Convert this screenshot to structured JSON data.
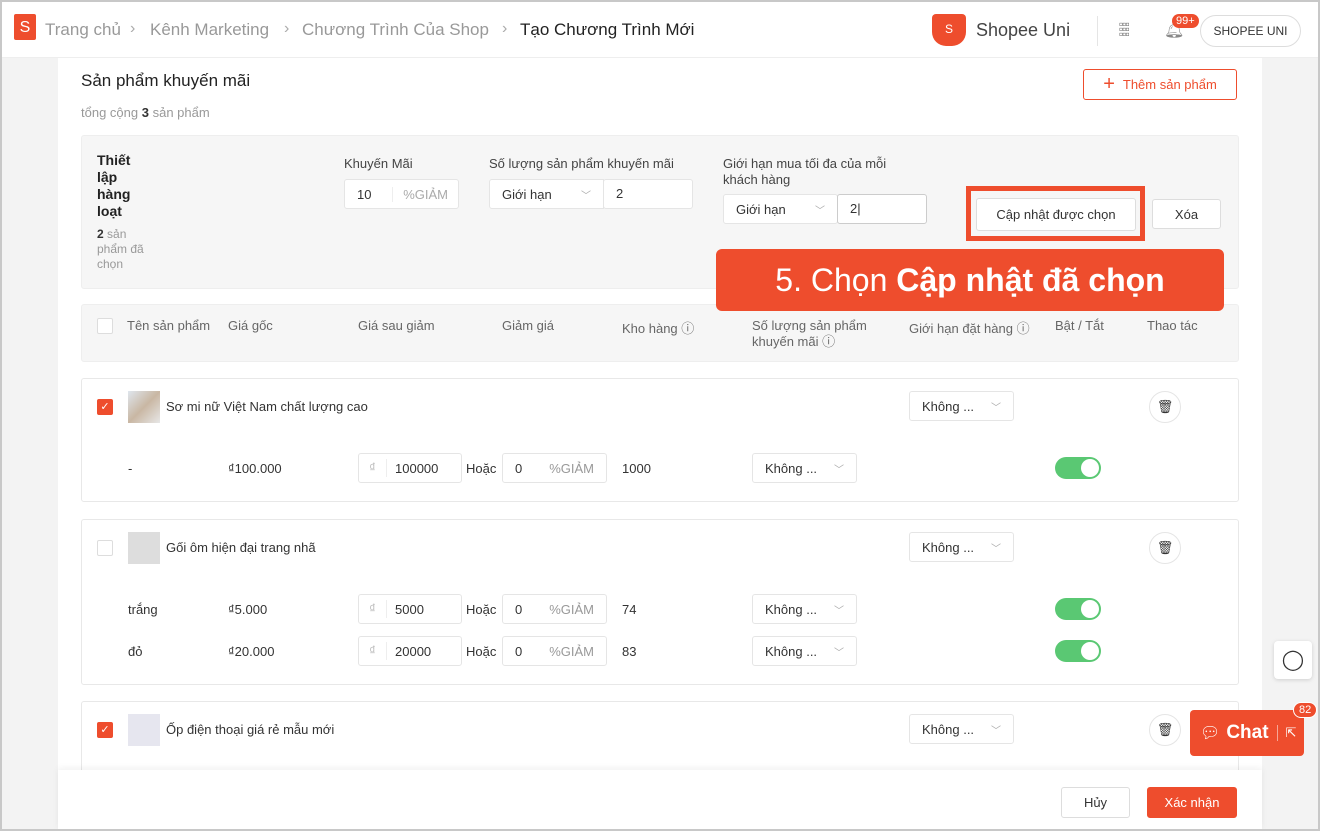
{
  "breadcrumb": [
    "Trang chủ",
    "Kênh Marketing",
    "Chương Trình Của Shop",
    "Tạo Chương Trình Mới"
  ],
  "header": {
    "brand": "Shopee Uni",
    "notif_badge": "99+",
    "account": "SHOPEE UNI"
  },
  "section": {
    "title": "Sản phẩm khuyến mãi",
    "total_prefix": "tổng cộng",
    "total_count": "3",
    "total_suffix": "sản phẩm",
    "add_button": "Thêm sản phẩm"
  },
  "bulk": {
    "title": "Thiết lập hàng loạt",
    "selected_count": "2",
    "selected_suffix": "sản phẩm đã chọn",
    "promo_label": "Khuyến Mãi",
    "promo_value": "10",
    "promo_unit": "%GIẢM",
    "qty_label": "Số lượng sản phẩm khuyến mãi",
    "qty_select": "Giới hạn",
    "qty_value": "2",
    "limit_label": "Giới hạn mua tối đa của mỗi khách hàng",
    "limit_select": "Giới hạn",
    "limit_value": "2",
    "update_button": "Cập nhật được chọn",
    "delete_button": "Xóa"
  },
  "callout": {
    "prefix": "5. Chọn",
    "bold": "Cập nhật đã chọn"
  },
  "columns": [
    "Tên sản phẩm",
    "Giá gốc",
    "Giá sau giảm",
    "Giảm giá",
    "Kho hàng",
    "Số lượng sản phẩm khuyến mãi",
    "Giới hạn đặt hàng",
    "Bật / Tắt",
    "Thao tác"
  ],
  "products": [
    {
      "name": "Sơ mi nữ Việt Nam chất lượng cao",
      "checked": true,
      "limit": "Không ...",
      "variants": [
        {
          "name": "-",
          "price": "₫100.000",
          "currency": "₫",
          "new_price": "100000",
          "or": "Hoặc",
          "discount": "0",
          "unit": "%GIẢM",
          "stock": "1000",
          "qty": "Không ...",
          "enabled": true
        }
      ]
    },
    {
      "name": "Gối ôm hiện đại trang nhã",
      "checked": false,
      "limit": "Không ...",
      "variants": [
        {
          "name": "trắng",
          "price": "₫5.000",
          "currency": "₫",
          "new_price": "5000",
          "or": "Hoặc",
          "discount": "0",
          "unit": "%GIẢM",
          "stock": "74",
          "qty": "Không ...",
          "enabled": true
        },
        {
          "name": "đỏ",
          "price": "₫20.000",
          "currency": "₫",
          "new_price": "20000",
          "or": "Hoặc",
          "discount": "0",
          "unit": "%GIẢM",
          "stock": "83",
          "qty": "Không ...",
          "enabled": true
        }
      ]
    },
    {
      "name": "Ốp điện thoại giá rẻ mẫu mới",
      "checked": true,
      "limit": "Không ...",
      "variants": []
    }
  ],
  "footer": {
    "cancel": "Hủy",
    "confirm": "Xác nhận"
  },
  "chat": {
    "label": "Chat",
    "badge": "82"
  },
  "colors": {
    "brand": "#ee4d2d",
    "toggle_on": "#5ac873"
  }
}
